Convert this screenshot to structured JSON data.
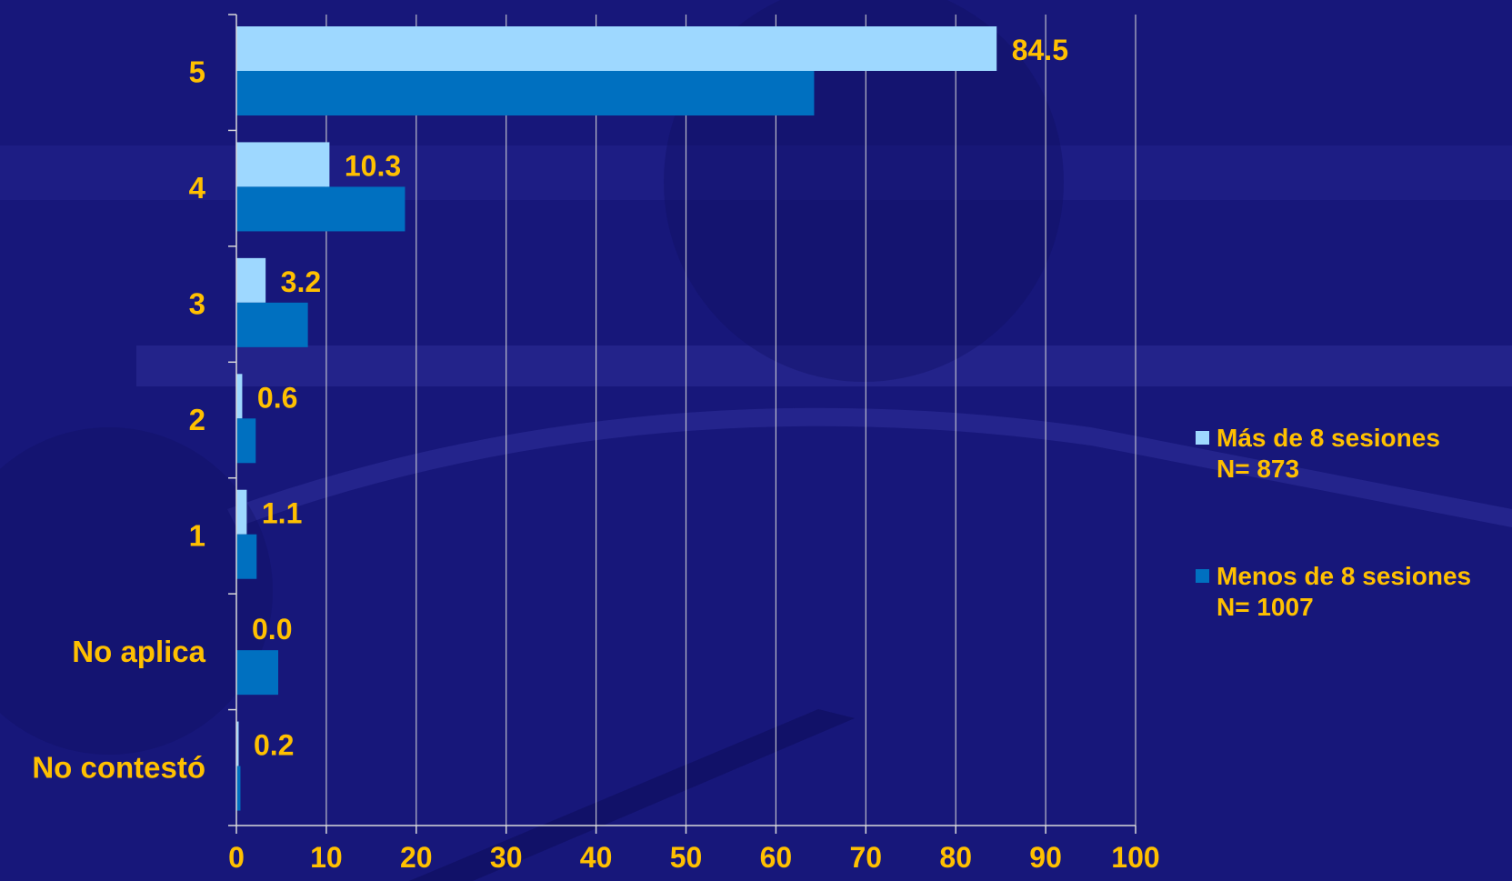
{
  "colors": {
    "series_light": "#9ed8ff",
    "series_dark": "#0070c0",
    "text_gold": "#ffc000",
    "grid": "#d9d9d9"
  },
  "legend": [
    {
      "line1": "Más de 8 sesiones",
      "line2": "N= 873"
    },
    {
      "line1": "Menos de 8 sesiones",
      "line2": "N= 1007"
    }
  ],
  "chart_data": {
    "type": "bar",
    "orientation": "horizontal",
    "categories": [
      "5",
      "4",
      "3",
      "2",
      "1",
      "No aplica",
      "No contestó"
    ],
    "series": [
      {
        "name": "Más de 8 sesiones N= 873",
        "values": [
          84.5,
          10.3,
          3.2,
          0.6,
          1.1,
          0.0,
          0.2
        ],
        "labels": [
          "84.5",
          "10.3",
          "3.2",
          "0.6",
          "1.1",
          "0.0",
          "0.2"
        ]
      },
      {
        "name": "Menos de 8 sesiones N= 1007",
        "values": [
          64.2,
          18.7,
          7.9,
          2.1,
          2.2,
          4.6,
          0.4
        ]
      }
    ],
    "xlim": [
      0,
      100
    ],
    "xticks": [
      "0",
      "10",
      "20",
      "30",
      "40",
      "50",
      "60",
      "70",
      "80",
      "90",
      "100"
    ],
    "grid": "vertical",
    "legend_position": "right"
  }
}
